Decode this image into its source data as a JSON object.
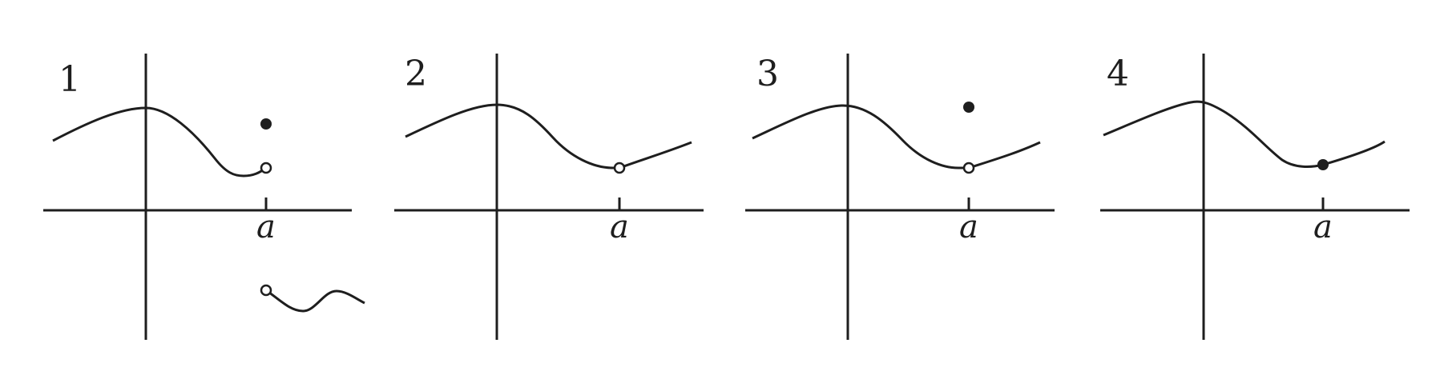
{
  "panels": [
    {
      "label": "1",
      "tick_label": "a"
    },
    {
      "label": "2",
      "tick_label": "a"
    },
    {
      "label": "3",
      "tick_label": "a"
    },
    {
      "label": "4",
      "tick_label": "a"
    }
  ]
}
